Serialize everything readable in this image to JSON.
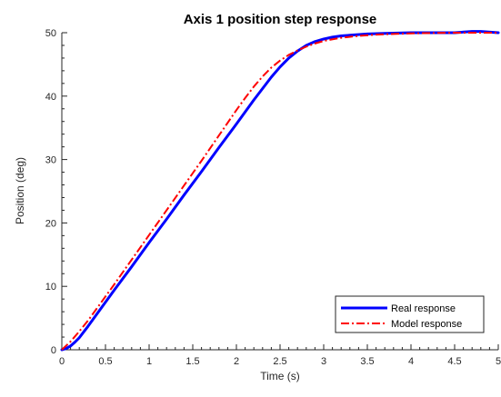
{
  "chart_data": {
    "type": "line",
    "title": "Axis 1 position step response",
    "xlabel": "Time (s)",
    "ylabel": "Position (deg)",
    "xlim": [
      0,
      5
    ],
    "ylim": [
      0,
      50
    ],
    "xticks": [
      0,
      0.5,
      1,
      1.5,
      2,
      2.5,
      3,
      3.5,
      4,
      4.5,
      5
    ],
    "xtick_labels": [
      "0",
      "0.5",
      "1",
      "1.5",
      "2",
      "2.5",
      "3",
      "3.5",
      "4",
      "4.5",
      "5"
    ],
    "yticks": [
      0,
      10,
      20,
      30,
      40,
      50
    ],
    "ytick_labels": [
      "0",
      "10",
      "20",
      "30",
      "40",
      "50"
    ],
    "grid": false,
    "legend_position": "bottom-right",
    "series": [
      {
        "name": "Real response",
        "color": "#0000ff",
        "style": "solid",
        "x": [
          0,
          0.05,
          0.1,
          0.15,
          0.2,
          0.25,
          0.3,
          0.4,
          0.5,
          0.6,
          0.8,
          1.0,
          1.2,
          1.4,
          1.6,
          1.8,
          2.0,
          2.2,
          2.4,
          2.5,
          2.6,
          2.7,
          2.8,
          2.9,
          3.0,
          3.1,
          3.2,
          3.3,
          3.5,
          3.7,
          4.0,
          4.3,
          4.5,
          4.7,
          4.8,
          5.0
        ],
        "y": [
          0,
          0.2,
          0.6,
          1.2,
          1.9,
          2.8,
          3.7,
          5.6,
          7.5,
          9.4,
          13.1,
          16.9,
          20.6,
          24.4,
          28.1,
          31.9,
          35.6,
          39.4,
          43.0,
          44.6,
          46.0,
          47.1,
          48.0,
          48.6,
          49.0,
          49.3,
          49.5,
          49.6,
          49.8,
          49.9,
          50.0,
          50.0,
          50.0,
          50.2,
          50.2,
          50.0
        ]
      },
      {
        "name": "Model response",
        "color": "#ff0000",
        "style": "dashdot",
        "x": [
          0,
          0.1,
          0.2,
          0.3,
          0.4,
          0.6,
          0.8,
          1.0,
          1.2,
          1.4,
          1.6,
          1.8,
          2.0,
          2.1,
          2.2,
          2.3,
          2.4,
          2.5,
          2.6,
          2.7,
          2.8,
          2.9,
          3.0,
          3.2,
          3.4,
          3.6,
          3.8,
          4.0,
          4.5,
          5.0
        ],
        "y": [
          0,
          1.3,
          2.9,
          4.6,
          6.5,
          10.3,
          14.2,
          18.1,
          22.0,
          25.9,
          29.8,
          33.8,
          37.8,
          39.7,
          41.5,
          43.1,
          44.5,
          45.6,
          46.5,
          47.2,
          47.8,
          48.3,
          48.7,
          49.2,
          49.5,
          49.7,
          49.8,
          49.9,
          50.0,
          50.0
        ]
      }
    ]
  }
}
